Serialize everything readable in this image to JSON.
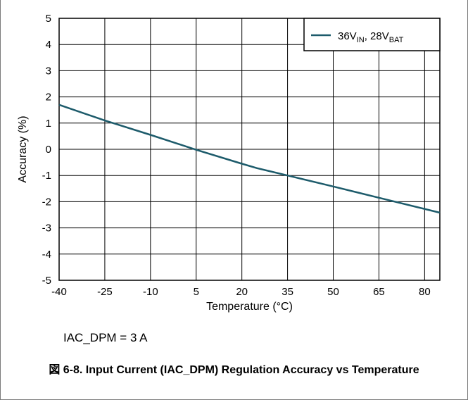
{
  "chart_data": {
    "type": "line",
    "xlabel": "Temperature (°C)",
    "ylabel": "Accuracy (%)",
    "xlim": [
      -40,
      85
    ],
    "ylim": [
      -5,
      5
    ],
    "xticks": [
      -40,
      -25,
      -10,
      5,
      20,
      35,
      50,
      65,
      80
    ],
    "yticks": [
      -5,
      -4,
      -3,
      -2,
      -1,
      0,
      1,
      2,
      3,
      4,
      5
    ],
    "grid": true,
    "legend_position": "top-right",
    "series": [
      {
        "name": "36V_IN, 28V_BAT",
        "legend": {
          "main1": "36V",
          "sub1": "IN",
          "main2": ", 28V",
          "sub2": "BAT"
        },
        "color": "#1d5b6b",
        "x": [
          -40,
          -25,
          -10,
          5,
          20,
          25,
          35,
          50,
          65,
          85
        ],
        "y": [
          1.7,
          1.1,
          0.55,
          -0.02,
          -0.55,
          -0.72,
          -1.0,
          -1.42,
          -1.85,
          -2.42
        ]
      }
    ]
  },
  "condition": "IAC_DPM = 3 A",
  "caption": "図 6-8. Input Current (IAC_DPM) Regulation Accuracy vs Temperature"
}
